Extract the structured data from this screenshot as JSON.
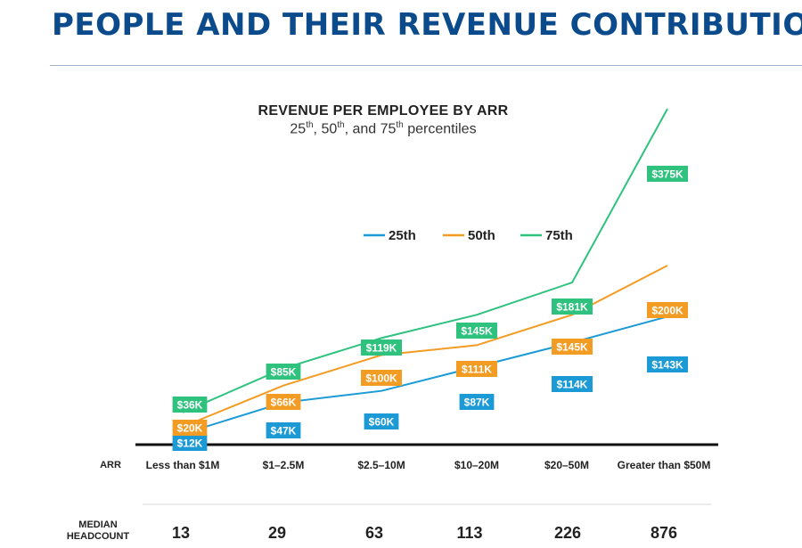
{
  "page": {
    "title": "PEOPLE AND THEIR REVENUE CONTRIBUTION"
  },
  "chart_data": {
    "type": "line",
    "title": "REVENUE PER EMPLOYEE BY ARR",
    "subtitle": {
      "p1": "25",
      "p1_sup": "th",
      "p2": ", 50",
      "p2_sup": "th",
      "p3": ", and 75",
      "p3_sup": "th",
      "p4": " percentiles"
    },
    "xlabel": "ARR",
    "categories": [
      "Less than $1M",
      "$1–2.5M",
      "$2.5–10M",
      "$10–20M",
      "$20–50M",
      "Greater than $50M"
    ],
    "ylim": [
      0,
      400
    ],
    "unit": "K",
    "series": [
      {
        "name": "25th",
        "color": "#1b9ad6",
        "values": [
          12,
          47,
          60,
          87,
          114,
          143
        ],
        "labels": [
          "$12K",
          "$47K",
          "$60K",
          "$87K",
          "$114K",
          "$143K"
        ]
      },
      {
        "name": "50th",
        "color": "#f39c24",
        "values": [
          20,
          66,
          100,
          111,
          145,
          200
        ],
        "labels": [
          "$20K",
          "$66K",
          "$100K",
          "$111K",
          "$145K",
          "$200K"
        ]
      },
      {
        "name": "75th",
        "color": "#2ec27e",
        "values": [
          36,
          85,
          119,
          145,
          181,
          375
        ],
        "labels": [
          "$36K",
          "$85K",
          "$119K",
          "$145K",
          "$181K",
          "$375K"
        ]
      }
    ],
    "legend_position": "top-center",
    "grid": false,
    "headcount_label": {
      "line1": "MEDIAN",
      "line2": "HEADCOUNT"
    },
    "median_headcount": [
      13,
      29,
      63,
      113,
      226,
      876
    ]
  }
}
